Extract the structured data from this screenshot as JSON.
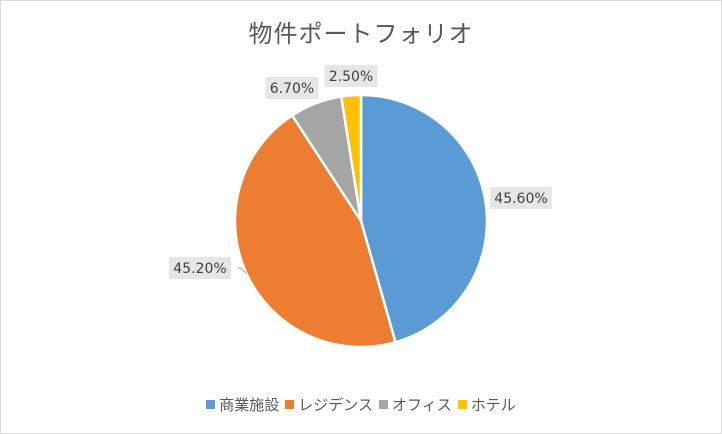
{
  "chart_data": {
    "type": "pie",
    "title": "物件ポートフォリオ",
    "categories": [
      "商業施設",
      "レジデンス",
      "オフィス",
      "ホテル"
    ],
    "values": [
      45.6,
      45.2,
      6.7,
      2.5
    ],
    "labels": [
      "45.60%",
      "45.20%",
      "6.70%",
      "2.50%"
    ],
    "colors": [
      "#5b9bd5",
      "#ed7d31",
      "#a5a5a5",
      "#ffc000"
    ],
    "legend_position": "bottom",
    "start_angle_deg": 0,
    "direction": "clockwise"
  }
}
